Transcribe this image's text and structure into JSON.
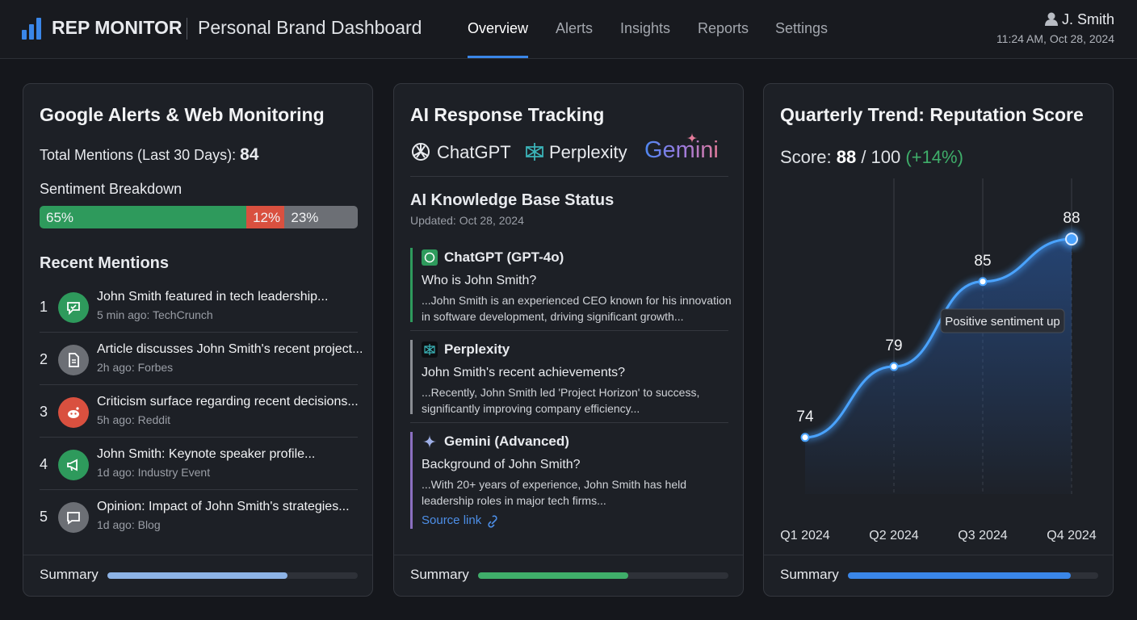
{
  "header": {
    "logo": "REP MONITOR",
    "title": "Personal Brand Dashboard",
    "nav": [
      "Overview",
      "Alerts",
      "Insights",
      "Reports",
      "Settings"
    ],
    "active_nav": 0,
    "user": "J. Smith",
    "timestamp": "11:24 AM, Oct 28, 2024"
  },
  "alerts": {
    "title": "Google Alerts & Web Monitoring",
    "total_label": "Total Mentions (Last 30 Days):",
    "total": 84,
    "sentiment_title": "Sentiment Breakdown",
    "sentiment": {
      "values": [
        65,
        12,
        23
      ],
      "value_labels": [
        "65%",
        "12%",
        "23%"
      ],
      "colors": [
        "#2e9a5c",
        "#d9503f",
        "#6c6f75"
      ]
    },
    "recent_title": "Recent Mentions",
    "mentions": [
      {
        "rank": 1,
        "title": "John Smith featured in tech leadership...",
        "meta": "5 min ago: TechCrunch",
        "color": "#2e9a5c"
      },
      {
        "rank": 2,
        "title": "Article discusses John Smith's recent project...",
        "meta": "2h ago: Forbes",
        "color": "#6c6f75"
      },
      {
        "rank": 3,
        "title": "Criticism surface regarding recent decisions...",
        "meta": "5h ago: Reddit",
        "color": "#d9503f"
      },
      {
        "rank": 4,
        "title": "John Smith: Keynote speaker profile...",
        "meta": "1d ago: Industry Event",
        "color": "#2e9a5c"
      },
      {
        "rank": 5,
        "title": "Opinion: Impact of John Smith's strategies...",
        "meta": "1d ago: Blog",
        "color": "#6c6f75"
      }
    ],
    "summary": {
      "label": "Summary",
      "progress": 72,
      "color": "#8db3e6"
    }
  },
  "ai": {
    "title": "AI Response Tracking",
    "platforms": [
      "ChatGPT",
      "Perplexity",
      "Gemini"
    ],
    "kb_title": "AI Knowledge Base Status",
    "updated": "Updated: Oct 28, 2024",
    "entries": [
      {
        "model": "ChatGPT (GPT-4o)",
        "question": "Who is John Smith?",
        "answer": "...John Smith is an experienced CEO known for his innovation in software development, driving significant growth...",
        "color": "#2e9a5c"
      },
      {
        "model": "Perplexity",
        "question": "John Smith's recent achievements?",
        "answer": "...Recently, John Smith led 'Project Horizon' to success, significantly improving company efficiency...",
        "color": "#8a8d93"
      },
      {
        "model": "Gemini (Advanced)",
        "question": "Background of John Smith?",
        "answer": "...With 20+ years of experience, John Smith has held leadership roles in major tech firms...",
        "color": "#8b6fc0"
      }
    ],
    "source_link": "Source link",
    "summary": {
      "label": "Summary",
      "progress": 60,
      "color": "#3fae6a"
    }
  },
  "trend": {
    "score_label": "Score:",
    "score": 88,
    "score_out_of": "/ 100",
    "score_change": "(+14%)",
    "summary": {
      "label": "Summary",
      "progress": 89,
      "color": "#3a86e8"
    }
  },
  "chart_data": {
    "type": "line",
    "title": "Quarterly Trend: Reputation Score",
    "categories": [
      "Q1 2024",
      "Q2 2024",
      "Q3 2024",
      "Q4 2024"
    ],
    "values": [
      74,
      79,
      85,
      88
    ],
    "color": "#4aa3ff",
    "ylim": [
      70,
      90
    ],
    "annotation": "Positive sentiment up"
  }
}
